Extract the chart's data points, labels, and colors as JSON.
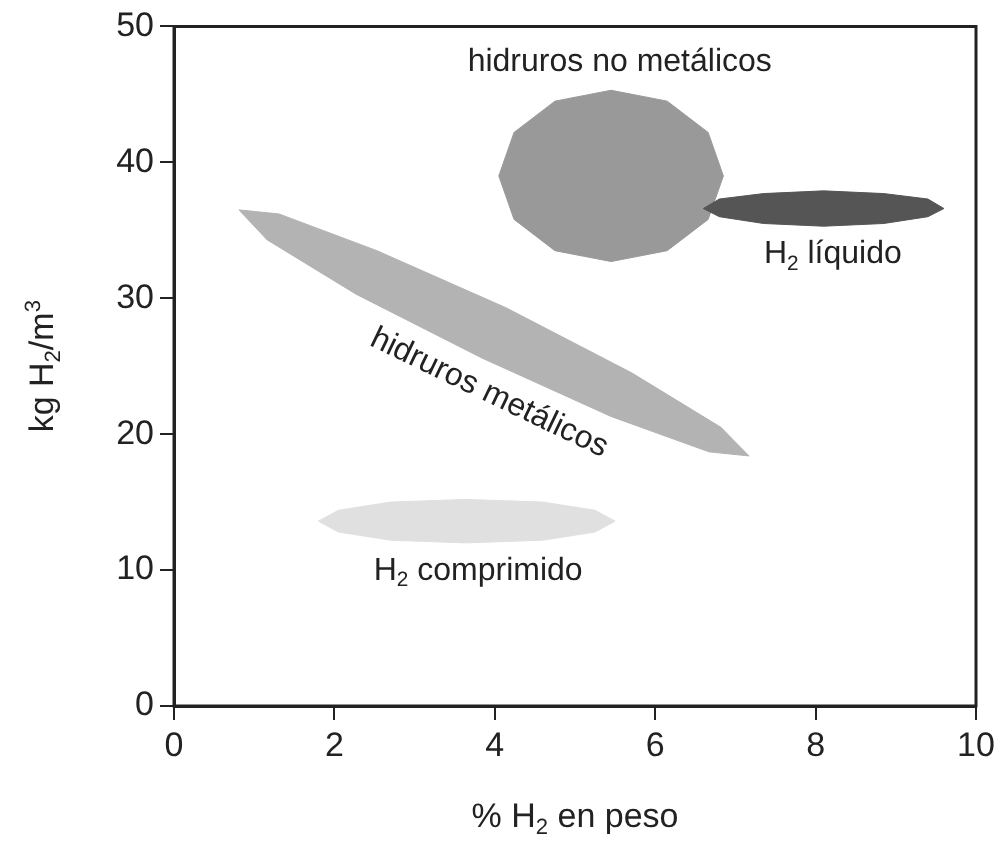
{
  "chart_data": {
    "type": "area",
    "xlabel": "% H$_{2}$ en peso",
    "ylabel": "kg H$_{2}$/m$^{3}$",
    "xlim": [
      0,
      10
    ],
    "xticks": [
      0,
      2,
      4,
      6,
      8,
      10
    ],
    "ylim": [
      0,
      50
    ],
    "yticks": [
      0,
      10,
      20,
      30,
      40,
      50
    ],
    "grid": false,
    "series": [
      {
        "name": "hidruros no metálicos",
        "color": "#999999",
        "x": [
          6.85,
          6.66,
          6.15,
          5.45,
          4.75,
          4.24,
          4.05,
          4.24,
          4.75,
          5.45,
          6.15,
          6.66,
          6.85
        ],
        "values": [
          39,
          42.2,
          44.5,
          45.3,
          44.5,
          42.2,
          39,
          35.8,
          33.5,
          32.7,
          33.5,
          35.8,
          39
        ]
      },
      {
        "name": "H$_{2}$ líquido",
        "color": "#555555",
        "x": [
          9.6,
          9.4,
          8.85,
          8.1,
          7.35,
          6.8,
          6.6,
          6.8,
          7.35,
          8.1,
          8.85,
          9.4,
          9.6
        ],
        "values": [
          36.6,
          37.3,
          37.7,
          37.9,
          37.7,
          37.3,
          36.6,
          36,
          35.5,
          35.3,
          35.5,
          36,
          36.6
        ]
      },
      {
        "name": "hidruros metálicos",
        "color": "#b3b3b3",
        "x": [
          7.17,
          6.82,
          5.71,
          4.14,
          2.53,
          1.31,
          0.81,
          1.16,
          2.27,
          3.84,
          5.45,
          6.67,
          7.17
        ],
        "values": [
          18.4,
          20.5,
          24.5,
          29.3,
          33.5,
          36.2,
          36.5,
          34.3,
          30.3,
          25.6,
          21.3,
          18.7,
          18.4
        ]
      },
      {
        "name": "H$_{2}$ comprimido",
        "color": "#e0e0e0",
        "x": [
          5.5,
          5.25,
          4.6,
          3.65,
          2.7,
          2.05,
          1.8,
          2.05,
          2.7,
          3.65,
          4.6,
          5.25,
          5.5
        ],
        "values": [
          13.6,
          14.4,
          15,
          15.2,
          15,
          14.4,
          13.6,
          12.8,
          12.2,
          12,
          12.2,
          12.8,
          13.6
        ]
      }
    ]
  }
}
